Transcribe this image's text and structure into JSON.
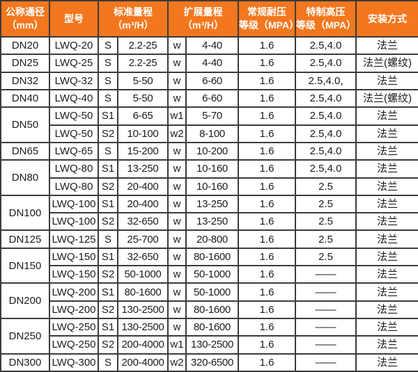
{
  "colors": {
    "header_bg": "#f3771e",
    "header_text": "#ffffff",
    "grid": "#3b3b3b",
    "cell_bg": "#ffffff",
    "cell_text": "#1c1c1c"
  },
  "table": {
    "headers": {
      "diameter": "公称通径\n（mm）",
      "model": "型号",
      "standard_range": "标准量程\n（m³/H）",
      "extended_range": "扩展量程\n（m³/H）",
      "pressure_regular": "常规耐压\n等级（MPA）",
      "pressure_high": "特制高压\n等级（MPA）",
      "install": "安装方式"
    },
    "rows": [
      {
        "diameter": "DN20",
        "diameter_rowspan": 1,
        "model": "LWQ-20",
        "std_code": "S",
        "std_range": "2.2-25",
        "ext_code": "w",
        "ext_range": "4-40",
        "pressure_regular": "1.6",
        "pressure_high": "2.5,4.0",
        "install": "法兰"
      },
      {
        "diameter": "DN25",
        "diameter_rowspan": 1,
        "model": "LWQ-25",
        "std_code": "S",
        "std_range": "2.2-25",
        "ext_code": "w",
        "ext_range": "4-40",
        "pressure_regular": "1.6",
        "pressure_high": "2.5,4.0",
        "install": "法兰(螺纹)"
      },
      {
        "diameter": "DN32",
        "diameter_rowspan": 1,
        "model": "LWQ-32",
        "std_code": "S",
        "std_range": "5-50",
        "ext_code": "w",
        "ext_range": "6-60",
        "pressure_regular": "1.6",
        "pressure_high": "2.5,4.0,",
        "install": "法兰"
      },
      {
        "diameter": "DN40",
        "diameter_rowspan": 1,
        "model": "LWQ-40",
        "std_code": "S",
        "std_range": "5-50",
        "ext_code": "w",
        "ext_range": "6-60",
        "pressure_regular": "1.6",
        "pressure_high": "2.5,4.0",
        "install": "法兰(螺纹)"
      },
      {
        "diameter": "DN50",
        "diameter_rowspan": 2,
        "model": "LWQ-50",
        "std_code": "S1",
        "std_range": "6-65",
        "ext_code": "w1",
        "ext_range": "5-70",
        "pressure_regular": "1.6",
        "pressure_high": "2.5,4.0",
        "install": "法兰"
      },
      {
        "diameter": null,
        "model": "LWQ-50",
        "std_code": "S2",
        "std_range": "10-100",
        "ext_code": "w2",
        "ext_range": "8-100",
        "pressure_regular": "1.6",
        "pressure_high": "2.5,4.0",
        "install": "法兰"
      },
      {
        "diameter": "DN65",
        "diameter_rowspan": 1,
        "model": "LWQ-65",
        "std_code": "S",
        "std_range": "15-200",
        "ext_code": "w",
        "ext_range": "10-200",
        "pressure_regular": "1.6",
        "pressure_high": "2.5,4.0",
        "install": "法兰"
      },
      {
        "diameter": "DN80",
        "diameter_rowspan": 2,
        "model": "LWQ-80",
        "std_code": "S1",
        "std_range": "13-250",
        "ext_code": "w",
        "ext_range": "10-160",
        "pressure_regular": "1.6",
        "pressure_high": "2.5,4.0",
        "install": "法兰"
      },
      {
        "diameter": null,
        "model": "LWQ-80",
        "std_code": "S2",
        "std_range": "20-400",
        "ext_code": "w",
        "ext_range": "10-160",
        "pressure_regular": "1.6",
        "pressure_high": "2.5",
        "install": "法兰"
      },
      {
        "diameter": "DN100",
        "diameter_rowspan": 2,
        "model": "LWQ-100",
        "std_code": "S1",
        "std_range": "20-400",
        "ext_code": "w",
        "ext_range": "13-250",
        "pressure_regular": "1.6",
        "pressure_high": "2.5",
        "install": "法兰"
      },
      {
        "diameter": null,
        "model": "LWQ-100",
        "std_code": "S2",
        "std_range": "32-650",
        "ext_code": "w",
        "ext_range": "13-250",
        "pressure_regular": "1.6",
        "pressure_high": "2.5",
        "install": "法兰"
      },
      {
        "diameter": "DN125",
        "diameter_rowspan": 1,
        "model": "LWQ-125",
        "std_code": "S",
        "std_range": "25-700",
        "ext_code": "w",
        "ext_range": "20-800",
        "pressure_regular": "1.6",
        "pressure_high": "2.5",
        "install": "法兰"
      },
      {
        "diameter": "DN150",
        "diameter_rowspan": 2,
        "model": "LWQ-150",
        "std_code": "S1",
        "std_range": "32-650",
        "ext_code": "w",
        "ext_range": "80-1600",
        "pressure_regular": "1.6",
        "pressure_high": "2.5",
        "install": "法兰"
      },
      {
        "diameter": null,
        "model": "LWQ-150",
        "std_code": "S2",
        "std_range": "50-1000",
        "ext_code": "w",
        "ext_range": "50-1000",
        "pressure_regular": "1.6",
        "pressure_high": "——",
        "install": "法兰"
      },
      {
        "diameter": "DN200",
        "diameter_rowspan": 2,
        "model": "LWQ-200",
        "std_code": "S1",
        "std_range": "80-1600",
        "ext_code": "w",
        "ext_range": "50-1000",
        "pressure_regular": "1.6",
        "pressure_high": "——",
        "install": "法兰"
      },
      {
        "diameter": null,
        "model": "LWQ-200",
        "std_code": "S2",
        "std_range": "130-2500",
        "ext_code": "w",
        "ext_range": "80-1600",
        "pressure_regular": "1.6",
        "pressure_high": "——",
        "install": "法兰"
      },
      {
        "diameter": "DN250",
        "diameter_rowspan": 2,
        "model": "LWQ-250",
        "std_code": "S1",
        "std_range": "130-2500",
        "ext_code": "w",
        "ext_range": "80-1600",
        "pressure_regular": "1.6",
        "pressure_high": "——",
        "install": "法兰"
      },
      {
        "diameter": null,
        "model": "LWQ-250",
        "std_code": "S2",
        "std_range": "200-4000",
        "ext_code": "w1",
        "ext_range": "130-2500",
        "pressure_regular": "1.6",
        "pressure_high": "——",
        "install": "法兰"
      },
      {
        "diameter": "DN300",
        "diameter_rowspan": 1,
        "model": "LWQ-300",
        "std_code": "S",
        "std_range": "200-4000",
        "ext_code": "w2",
        "ext_range": "320-6500",
        "pressure_regular": "1.6",
        "pressure_high": "——",
        "install": "法兰"
      }
    ]
  }
}
